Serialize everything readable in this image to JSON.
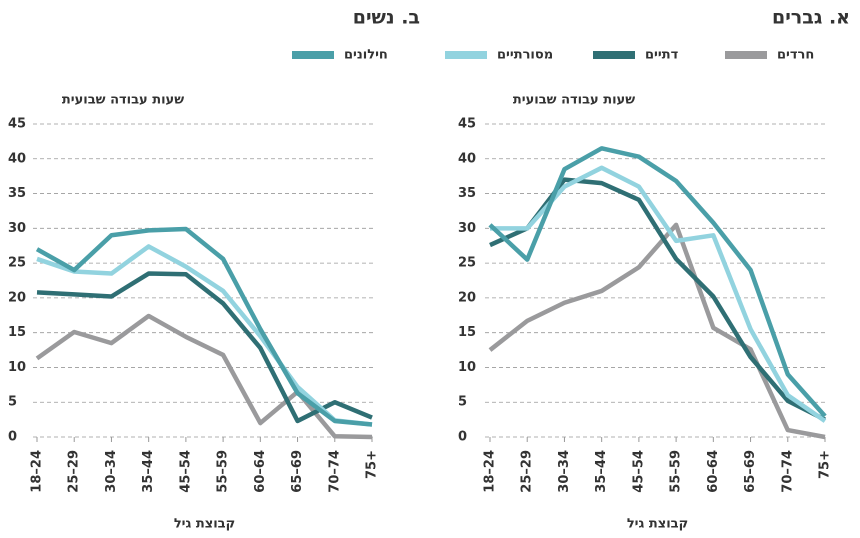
{
  "legend": {
    "items": [
      {
        "name": "חילונים",
        "color": "#4a9fa8"
      },
      {
        "name": "מסורתיים",
        "color": "#92d3df"
      },
      {
        "name": "דתיים",
        "color": "#2f6f74"
      },
      {
        "name": "חרדים",
        "color": "#9a9a9c"
      }
    ]
  },
  "chart_data": [
    {
      "type": "line",
      "title": "א. גברים",
      "y_label": "שעות עבודה שבועית",
      "x_label": "קבוצת גיל",
      "categories": [
        "18–24",
        "25–29",
        "30–34",
        "35–44",
        "45–54",
        "55–59",
        "60–64",
        "65–69",
        "70–74",
        "75+"
      ],
      "ylim": [
        0,
        45
      ],
      "yticks": [
        0,
        5,
        10,
        15,
        20,
        25,
        30,
        35,
        40,
        45
      ],
      "grid": true,
      "series": [
        {
          "values": [
            30.5,
            25.5,
            38.5,
            41.5,
            40.3,
            36.8,
            30.8,
            24,
            9,
            3
          ]
        },
        {
          "values": [
            30,
            30,
            36,
            38.7,
            36,
            28.2,
            29,
            15.5,
            6,
            2.3
          ]
        },
        {
          "values": [
            27.6,
            30,
            37,
            36.5,
            34.1,
            25.6,
            20.2,
            11.5,
            5.2,
            2.5
          ]
        },
        {
          "values": [
            12.5,
            16.7,
            19.3,
            21,
            24.4,
            30.5,
            15.7,
            12.6,
            1,
            0
          ]
        }
      ]
    },
    {
      "type": "line",
      "title": "ב. נשים",
      "y_label": "שעות עבודה שבועית",
      "x_label": "קבוצת גיל",
      "categories": [
        "18–24",
        "25–29",
        "30–34",
        "35–44",
        "45–54",
        "55–59",
        "60–64",
        "65–69",
        "70–74",
        "75+"
      ],
      "ylim": [
        0,
        45
      ],
      "yticks": [
        0,
        5,
        10,
        15,
        20,
        25,
        30,
        35,
        40,
        45
      ],
      "grid": true,
      "series": [
        {
          "values": [
            27,
            24,
            29,
            29.7,
            29.9,
            25.6,
            15.5,
            6.3,
            2.3,
            1.8
          ]
        },
        {
          "values": [
            25.6,
            23.8,
            23.5,
            27.4,
            24.5,
            21,
            14.5,
            7.2,
            2.4,
            1.8
          ]
        },
        {
          "values": [
            20.8,
            20.5,
            20.2,
            23.5,
            23.4,
            19.2,
            12.8,
            2.3,
            5,
            2.8
          ]
        },
        {
          "values": [
            11.3,
            15.1,
            13.5,
            17.4,
            14.4,
            11.8,
            2,
            6.5,
            0.1,
            0
          ]
        }
      ]
    }
  ]
}
